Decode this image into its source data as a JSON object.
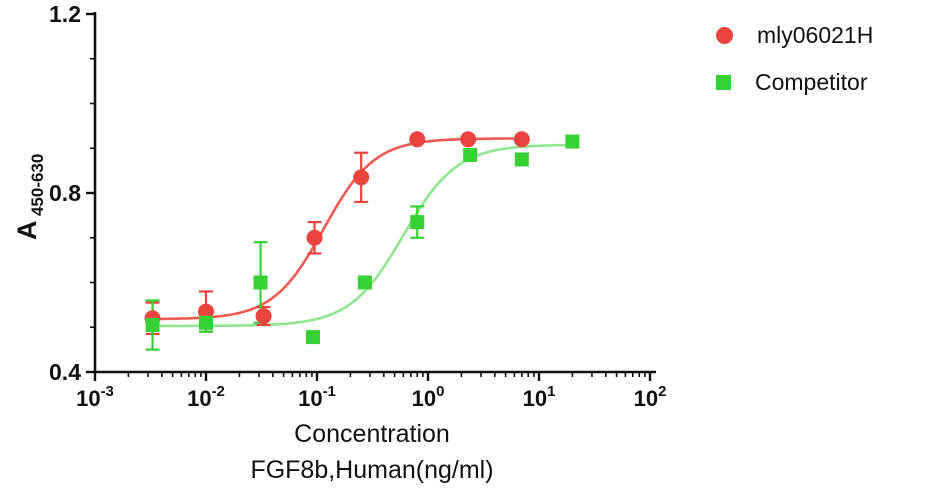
{
  "page": {
    "background": "#ffffff"
  },
  "legend": {
    "items": [
      {
        "label": "mly06021H",
        "marker": "circle",
        "color": "#ea4440"
      },
      {
        "label": "Competitor",
        "marker": "square",
        "color": "#35d135"
      }
    ]
  },
  "chart_data": {
    "type": "scatter",
    "subtype": "dose-response-4PL",
    "title": "",
    "x_scale": "log10",
    "xlabel_line1": "Concentration",
    "xlabel_line2": "FGF8b,Human(ng/ml)",
    "ylabel_base": "A",
    "ylabel_subscript": "450-630",
    "xlim": [
      0.001,
      100
    ],
    "ylim": [
      0.4,
      1.2
    ],
    "x_major_tick_exponents": [
      -3,
      -2,
      -1,
      0,
      1,
      2
    ],
    "y_major_ticks": [
      0.4,
      0.8,
      1.2
    ],
    "y_minor_ticks": [
      0.5,
      0.6,
      0.7,
      0.9,
      1.0,
      1.1
    ],
    "grid": false,
    "legend_position": "top-right",
    "series": [
      {
        "name": "mly06021H",
        "marker": "circle",
        "color": "#ea4440",
        "line_color": "#ee5a52",
        "points": [
          {
            "x": 0.0033,
            "y": 0.52,
            "err": 0.035
          },
          {
            "x": 0.01,
            "y": 0.535,
            "err": 0.045
          },
          {
            "x": 0.033,
            "y": 0.525,
            "err": 0.02
          },
          {
            "x": 0.095,
            "y": 0.7,
            "err": 0.035
          },
          {
            "x": 0.25,
            "y": 0.835,
            "err": 0.055
          },
          {
            "x": 0.8,
            "y": 0.92,
            "err": 0
          },
          {
            "x": 2.3,
            "y": 0.92,
            "err": 0
          },
          {
            "x": 7.0,
            "y": 0.92,
            "err": 0
          }
        ],
        "fit": {
          "bottom": 0.518,
          "top": 0.922,
          "ec50": 0.115,
          "hill": 1.9,
          "xmin": 0.0033,
          "xmax": 7.5
        }
      },
      {
        "name": "Competitor",
        "marker": "square",
        "color": "#35d135",
        "line_color": "#8fe68f",
        "points": [
          {
            "x": 0.0033,
            "y": 0.505,
            "err": 0.055
          },
          {
            "x": 0.01,
            "y": 0.51,
            "err": 0.02
          },
          {
            "x": 0.031,
            "y": 0.6,
            "err": 0.09
          },
          {
            "x": 0.092,
            "y": 0.478,
            "err": 0
          },
          {
            "x": 0.27,
            "y": 0.6,
            "err": 0.012
          },
          {
            "x": 0.8,
            "y": 0.735,
            "err": 0.035
          },
          {
            "x": 2.4,
            "y": 0.885,
            "err": 0
          },
          {
            "x": 7.0,
            "y": 0.875,
            "err": 0
          },
          {
            "x": 20,
            "y": 0.915,
            "err": 0
          }
        ],
        "fit": {
          "bottom": 0.503,
          "top": 0.908,
          "ec50": 0.6,
          "hill": 1.8,
          "xmin": 0.0033,
          "xmax": 20
        }
      }
    ]
  }
}
